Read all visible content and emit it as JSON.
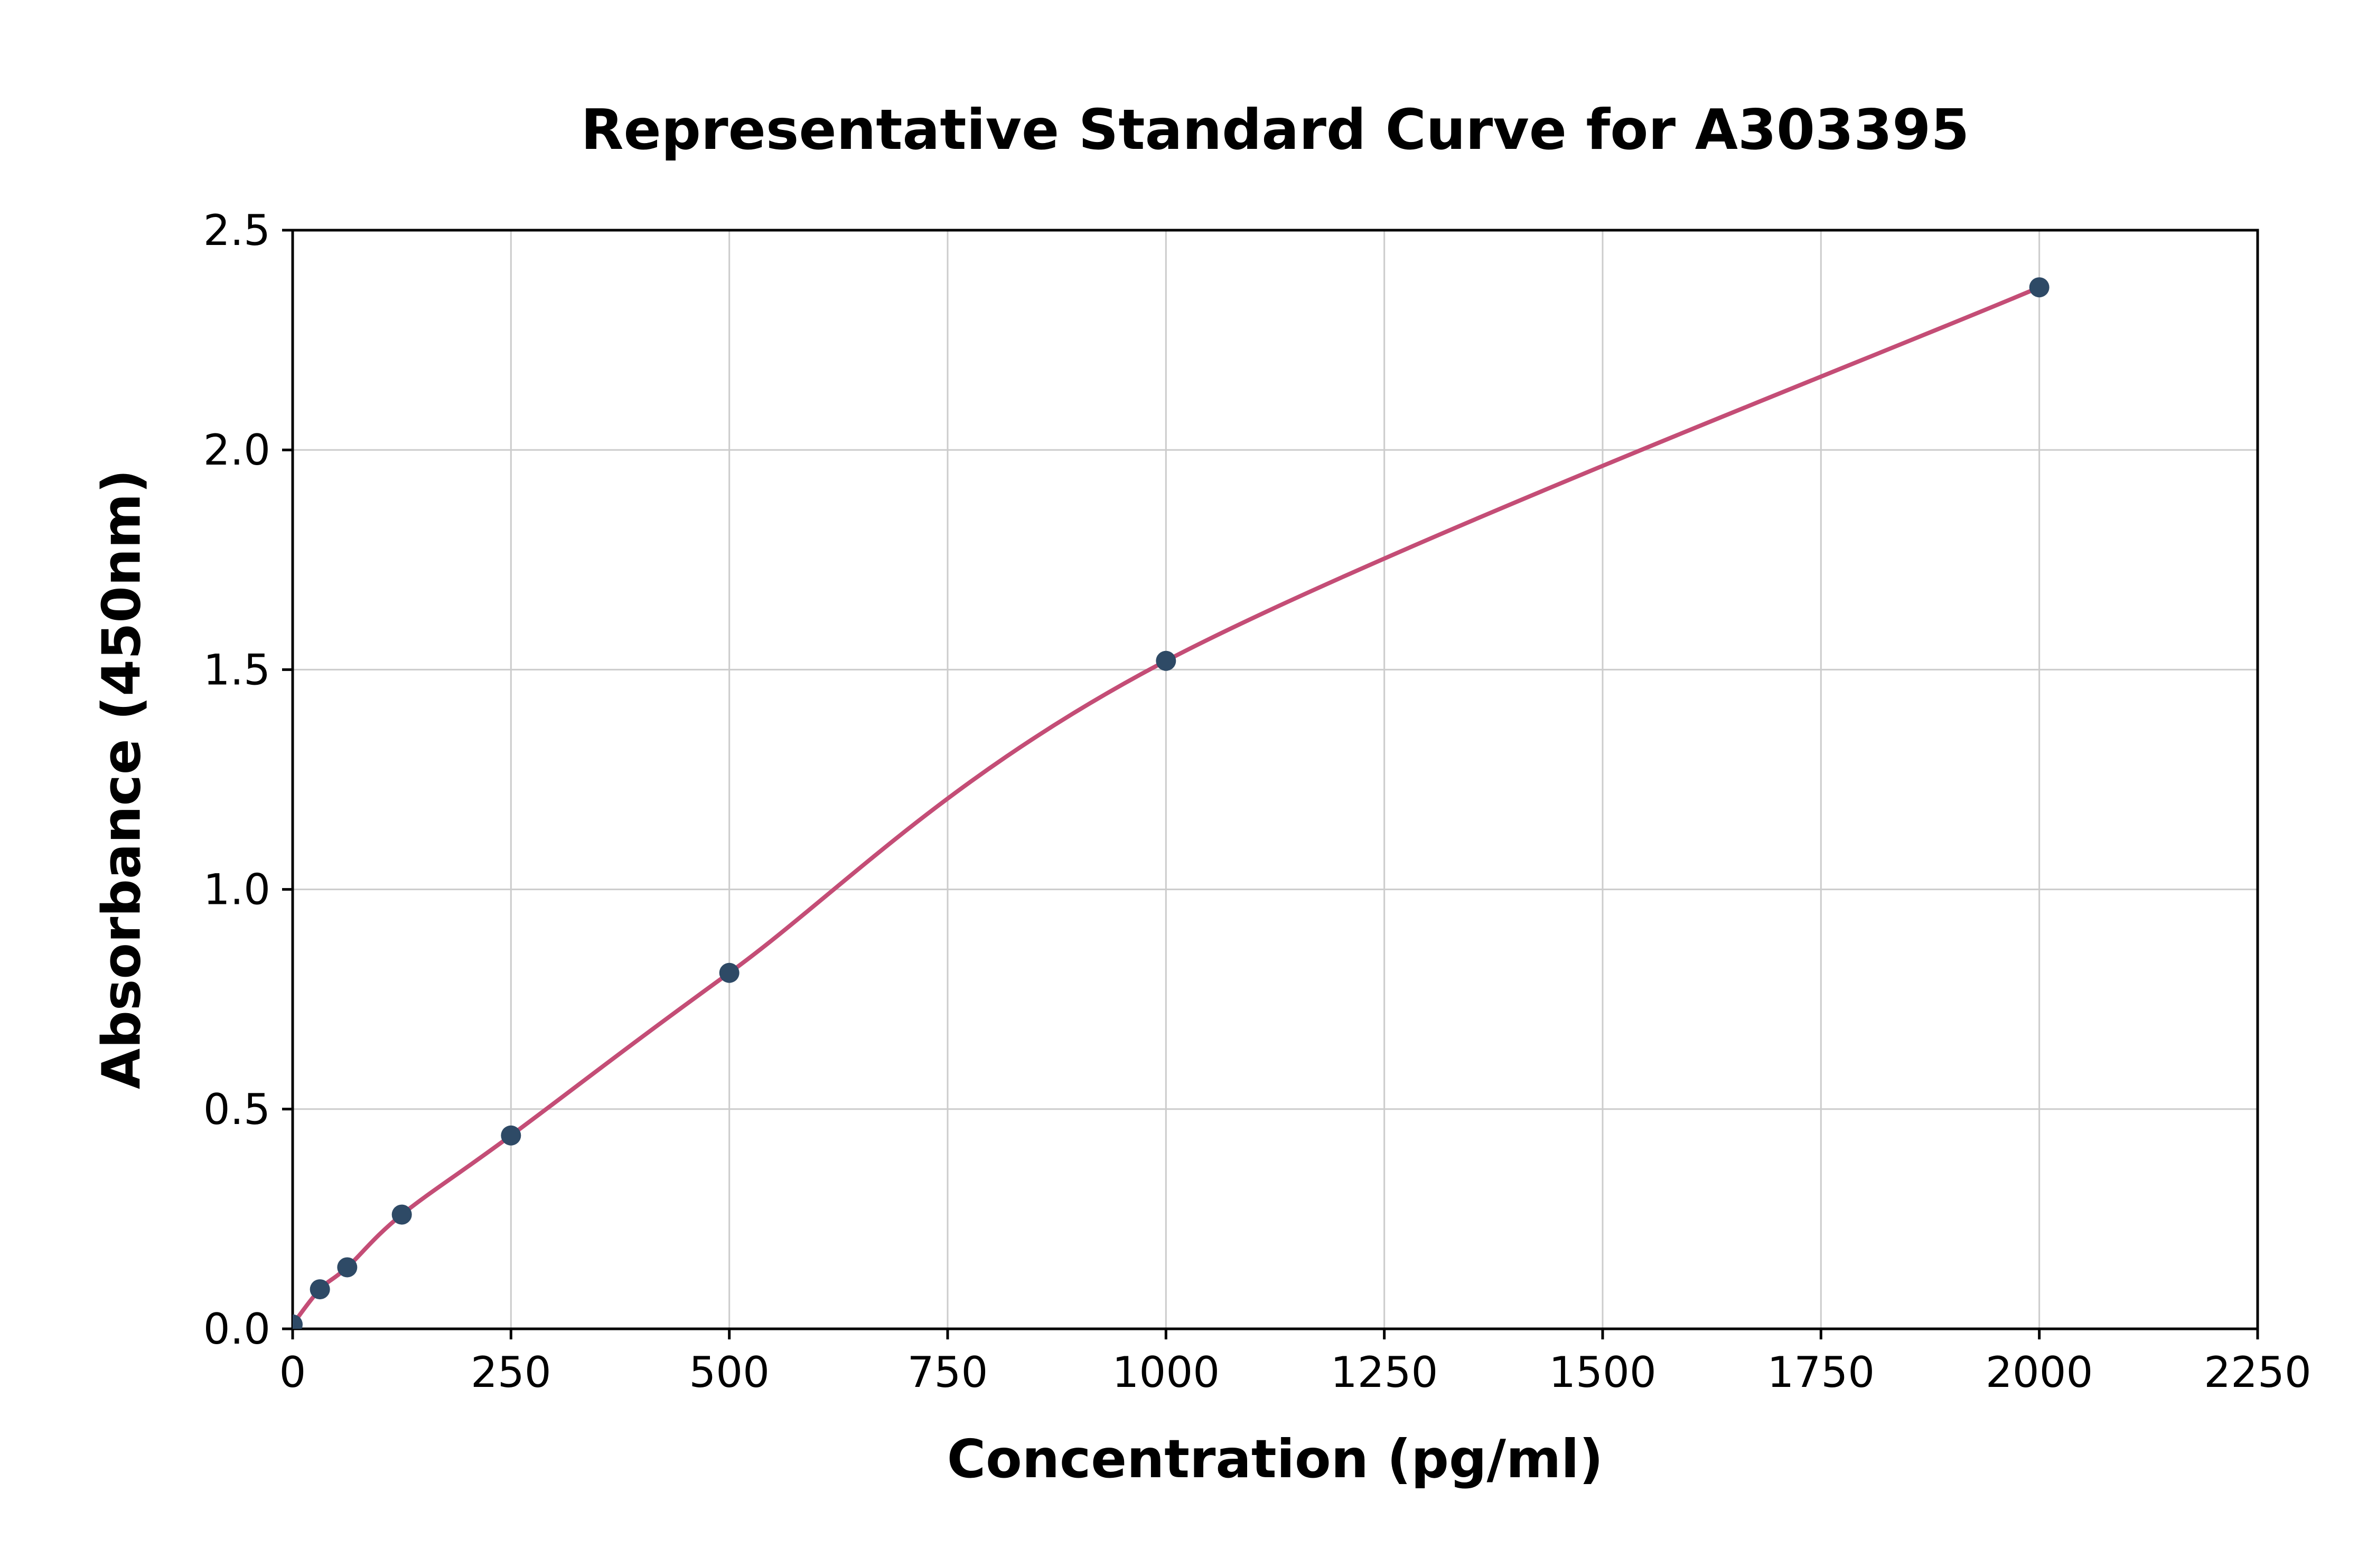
{
  "chart_data": {
    "type": "scatter",
    "title": "Representative Standard Curve for A303395",
    "xlabel": "Concentration (pg/ml)",
    "ylabel": "Absorbance (450nm)",
    "x": [
      0,
      31.25,
      62.5,
      125,
      250,
      500,
      1000,
      2000
    ],
    "y": [
      0.01,
      0.09,
      0.14,
      0.26,
      0.44,
      0.81,
      1.52,
      2.37
    ],
    "fit_curve": true,
    "xlim": [
      0,
      2250
    ],
    "ylim": [
      0,
      2.5
    ],
    "x_ticks": [
      0,
      250,
      500,
      750,
      1000,
      1250,
      1500,
      1750,
      2000,
      2250
    ],
    "x_tick_labels": [
      "0",
      "250",
      "500",
      "750",
      "1000",
      "1250",
      "1500",
      "1750",
      "2000",
      "2250"
    ],
    "y_ticks": [
      0.0,
      0.5,
      1.0,
      1.5,
      2.0,
      2.5
    ],
    "y_tick_labels": [
      "0.0",
      "0.5",
      "1.0",
      "1.5",
      "2.0",
      "2.5"
    ],
    "grid": true,
    "legend": "none",
    "colors": {
      "point": "#2e4a66",
      "curve": "#c44d76",
      "grid": "#cccccc",
      "axis": "#000000",
      "background": "#ffffff"
    }
  }
}
